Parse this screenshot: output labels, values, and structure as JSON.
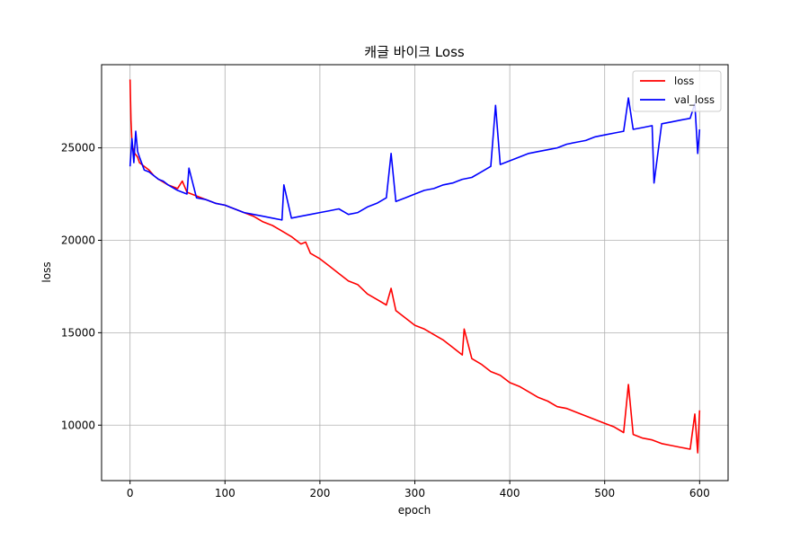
{
  "chart_data": {
    "type": "line",
    "title": "캐글 바이크 Loss",
    "xlabel": "epoch",
    "ylabel": "loss",
    "xlim": [
      -30,
      630
    ],
    "ylim": [
      7000,
      29500
    ],
    "xticks": [
      0,
      100,
      200,
      300,
      400,
      500,
      600
    ],
    "yticks": [
      10000,
      15000,
      20000,
      25000
    ],
    "grid": true,
    "legend_position": "top-right",
    "series": [
      {
        "name": "loss",
        "color": "#ff0000",
        "x": [
          0,
          1,
          2,
          3,
          5,
          8,
          10,
          15,
          20,
          25,
          30,
          40,
          50,
          55,
          60,
          70,
          80,
          90,
          100,
          110,
          120,
          130,
          140,
          150,
          160,
          170,
          180,
          185,
          190,
          200,
          210,
          220,
          230,
          240,
          250,
          260,
          270,
          275,
          280,
          290,
          300,
          310,
          320,
          330,
          340,
          350,
          352,
          360,
          370,
          380,
          390,
          400,
          410,
          420,
          430,
          440,
          450,
          460,
          470,
          480,
          490,
          500,
          510,
          520,
          525,
          530,
          540,
          550,
          560,
          570,
          580,
          590,
          595,
          598,
          600
        ],
        "y": [
          28700,
          26500,
          25300,
          25000,
          24700,
          24500,
          24200,
          24000,
          23800,
          23500,
          23300,
          23000,
          22800,
          23200,
          22600,
          22400,
          22200,
          22000,
          21900,
          21700,
          21500,
          21300,
          21000,
          20800,
          20500,
          20200,
          19800,
          19900,
          19300,
          19000,
          18600,
          18200,
          17800,
          17600,
          17100,
          16800,
          16500,
          17400,
          16200,
          15800,
          15400,
          15200,
          14900,
          14600,
          14200,
          13800,
          15200,
          13600,
          13300,
          12900,
          12700,
          12300,
          12100,
          11800,
          11500,
          11300,
          11000,
          10900,
          10700,
          10500,
          10300,
          10100,
          9900,
          9600,
          12200,
          9500,
          9300,
          9200,
          9000,
          8900,
          8800,
          8700,
          10600,
          8500,
          10800
        ]
      },
      {
        "name": "val_loss",
        "color": "#0000ff",
        "x": [
          0,
          2,
          4,
          6,
          8,
          10,
          15,
          20,
          25,
          30,
          35,
          40,
          50,
          60,
          62,
          70,
          80,
          90,
          100,
          110,
          120,
          130,
          140,
          150,
          160,
          162,
          170,
          180,
          190,
          200,
          210,
          220,
          230,
          240,
          250,
          260,
          270,
          275,
          280,
          290,
          300,
          310,
          320,
          330,
          340,
          350,
          360,
          370,
          380,
          385,
          390,
          400,
          410,
          420,
          430,
          440,
          450,
          460,
          470,
          480,
          490,
          500,
          510,
          520,
          525,
          530,
          540,
          550,
          552,
          560,
          570,
          580,
          590,
          595,
          598,
          600
        ],
        "y": [
          24000,
          25500,
          24200,
          25900,
          24800,
          24500,
          23800,
          23700,
          23500,
          23300,
          23200,
          23000,
          22700,
          22500,
          23900,
          22300,
          22200,
          22000,
          21900,
          21700,
          21500,
          21400,
          21300,
          21200,
          21100,
          23000,
          21200,
          21300,
          21400,
          21500,
          21600,
          21700,
          21400,
          21500,
          21800,
          22000,
          22300,
          24700,
          22100,
          22300,
          22500,
          22700,
          22800,
          23000,
          23100,
          23300,
          23400,
          23700,
          24000,
          27300,
          24100,
          24300,
          24500,
          24700,
          24800,
          24900,
          25000,
          25200,
          25300,
          25400,
          25600,
          25700,
          25800,
          25900,
          27700,
          26000,
          26100,
          26200,
          23100,
          26300,
          26400,
          26500,
          26600,
          27400,
          24700,
          26000
        ]
      }
    ]
  }
}
